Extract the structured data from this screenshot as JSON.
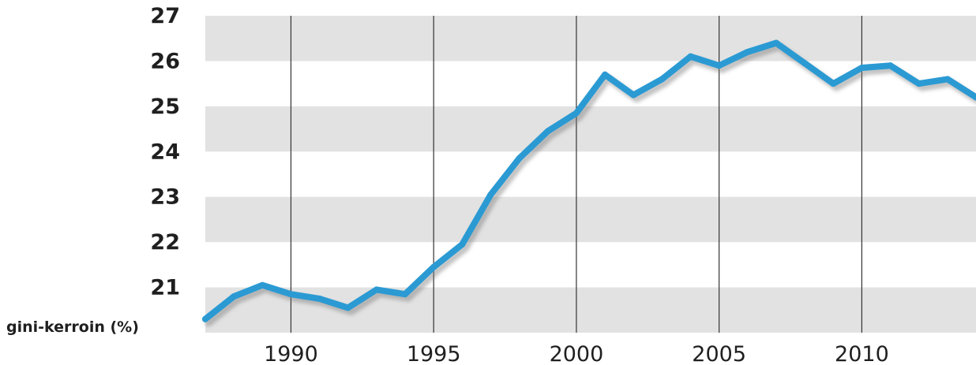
{
  "chart_data": {
    "type": "line",
    "ylabel": "gini-kerroin (%)",
    "xlim": [
      1987,
      2014
    ],
    "ylim": [
      20,
      27
    ],
    "yticks": [
      21,
      22,
      23,
      24,
      25,
      26,
      27
    ],
    "xticks": [
      1990,
      1995,
      2000,
      2005,
      2010
    ],
    "grid": "vertical lines at x ticks, alternating horizontal bands",
    "colors": {
      "line": "#2b9ad3",
      "band": "#e2e2e2",
      "gridline": "#333333"
    },
    "series": [
      {
        "x": [
          1987,
          1988,
          1989,
          1990,
          1991,
          1992,
          1993,
          1994,
          1995,
          1996,
          1997,
          1998,
          1999,
          2000,
          2001,
          2002,
          2003,
          2004,
          2005,
          2006,
          2007,
          2008,
          2009,
          2010,
          2011,
          2012,
          2013,
          2014
        ],
        "values": [
          20.3,
          20.8,
          21.05,
          20.85,
          20.75,
          20.55,
          20.95,
          20.85,
          21.45,
          21.95,
          23.05,
          23.85,
          24.45,
          24.85,
          25.7,
          25.25,
          25.6,
          26.1,
          25.9,
          26.2,
          26.4,
          25.95,
          25.5,
          25.85,
          25.9,
          25.5,
          25.6,
          25.2
        ]
      }
    ]
  }
}
